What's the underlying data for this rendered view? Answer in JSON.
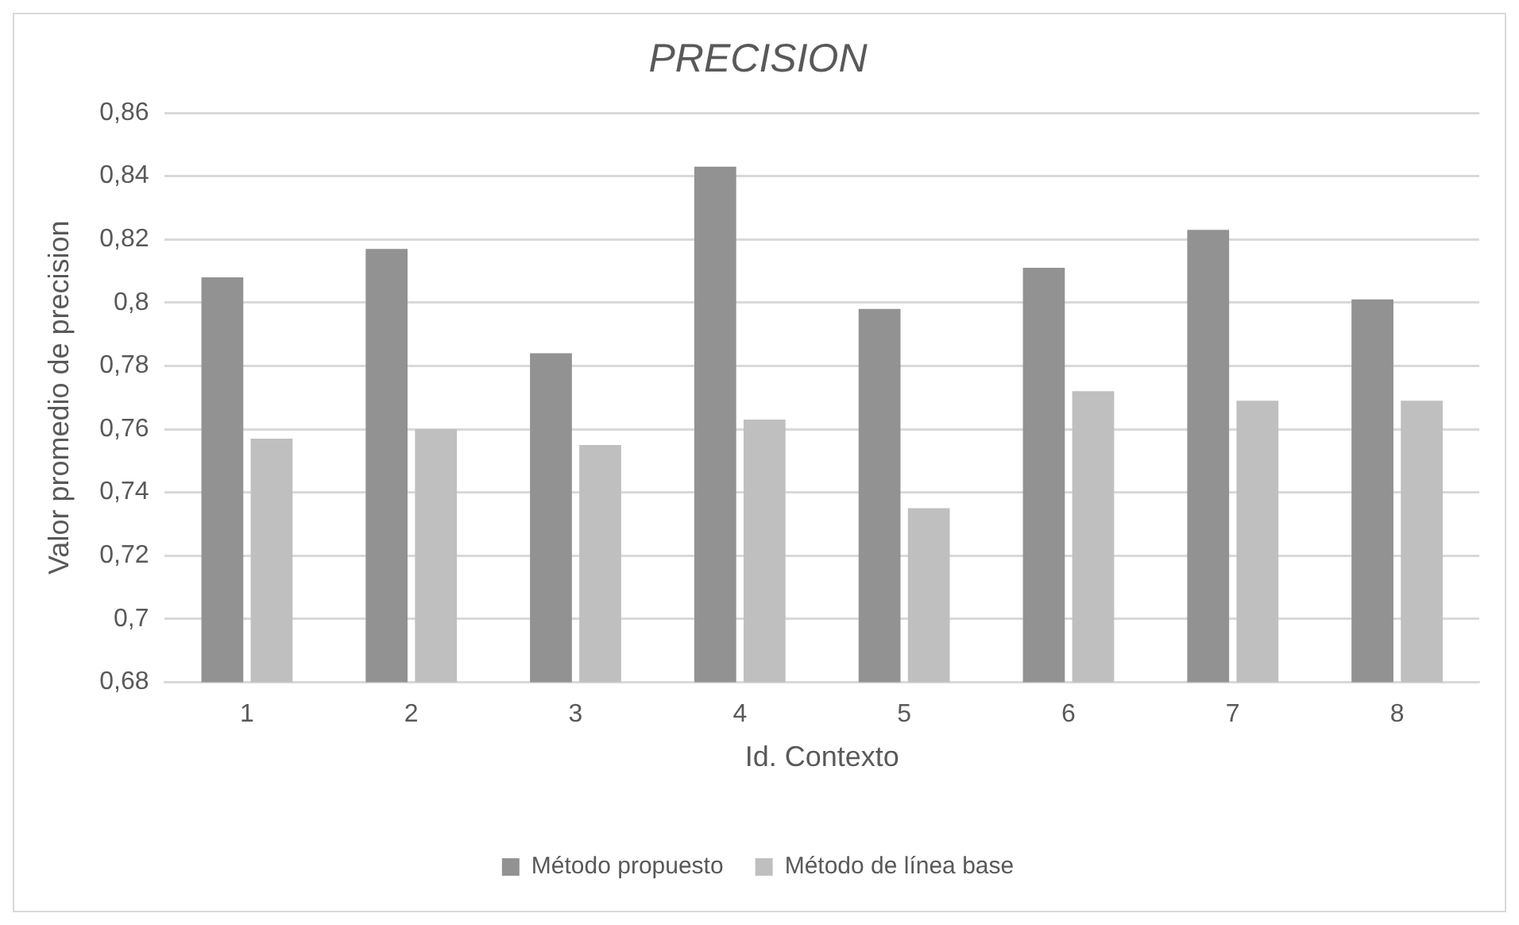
{
  "chart_data": {
    "type": "bar",
    "title": "PRECISION",
    "xlabel": "Id. Contexto",
    "ylabel": "Valor promedio de precision",
    "categories": [
      "1",
      "2",
      "3",
      "4",
      "5",
      "6",
      "7",
      "8"
    ],
    "series": [
      {
        "name": "Método propuesto",
        "color": "#929292",
        "values": [
          0.808,
          0.817,
          0.784,
          0.843,
          0.798,
          0.811,
          0.823,
          0.801
        ]
      },
      {
        "name": "Método de línea base",
        "color": "#bfbfbf",
        "values": [
          0.757,
          0.76,
          0.755,
          0.763,
          0.735,
          0.772,
          0.769,
          0.769
        ]
      }
    ],
    "ylim": [
      0.68,
      0.86
    ],
    "yticks": [
      {
        "value": 0.68,
        "label": "0,68"
      },
      {
        "value": 0.7,
        "label": "0,7"
      },
      {
        "value": 0.72,
        "label": "0,72"
      },
      {
        "value": 0.74,
        "label": "0,74"
      },
      {
        "value": 0.76,
        "label": "0,76"
      },
      {
        "value": 0.78,
        "label": "0,78"
      },
      {
        "value": 0.8,
        "label": "0,8"
      },
      {
        "value": 0.82,
        "label": "0,82"
      },
      {
        "value": 0.84,
        "label": "0,84"
      },
      {
        "value": 0.86,
        "label": "0,86"
      }
    ],
    "grid": "y",
    "legend": "bottom"
  }
}
